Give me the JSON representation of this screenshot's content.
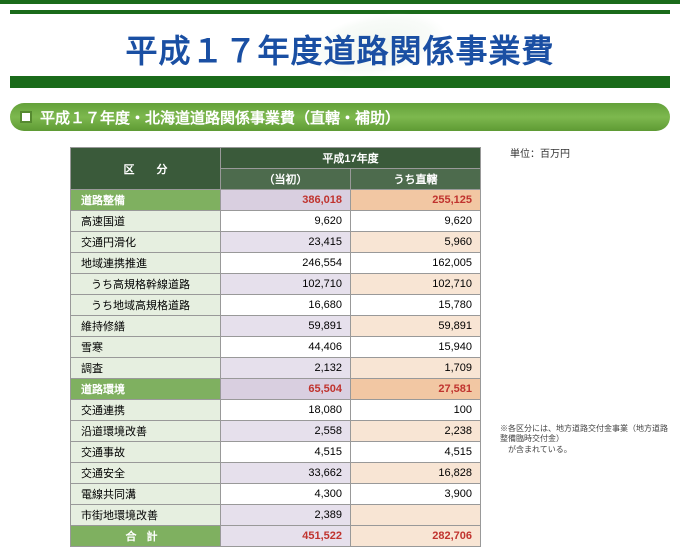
{
  "banner_title": "平成１７年度道路関係事業費",
  "subhead": "平成１７年度・北海道道路関係事業費（直轄・補助）",
  "unit_label": "単位：百万円",
  "table": {
    "header1": "区　　分",
    "header2": "平成17年度",
    "subhdr1": "（当初）",
    "subhdr2": "うち直轄",
    "rows": [
      {
        "label": "道路整備",
        "c1": "386,018",
        "c2": "255,125",
        "cls": "subtotal"
      },
      {
        "label": "高速国道",
        "c1": "9,620",
        "c2": "9,620",
        "cls": ""
      },
      {
        "label": "交通円滑化",
        "c1": "23,415",
        "c2": "5,960",
        "cls": "alt"
      },
      {
        "label": "地域連携推進",
        "c1": "246,554",
        "c2": "162,005",
        "cls": ""
      },
      {
        "label": "うち高規格幹線道路",
        "c1": "102,710",
        "c2": "102,710",
        "cls": "alt indent"
      },
      {
        "label": "うち地域高規格道路",
        "c1": "16,680",
        "c2": "15,780",
        "cls": "indent"
      },
      {
        "label": "維持修繕",
        "c1": "59,891",
        "c2": "59,891",
        "cls": "alt"
      },
      {
        "label": "雪寒",
        "c1": "44,406",
        "c2": "15,940",
        "cls": ""
      },
      {
        "label": "調査",
        "c1": "2,132",
        "c2": "1,709",
        "cls": "alt"
      },
      {
        "label": "道路環境",
        "c1": "65,504",
        "c2": "27,581",
        "cls": "subtotal"
      },
      {
        "label": "交通連携",
        "c1": "18,080",
        "c2": "100",
        "cls": ""
      },
      {
        "label": "沿道環境改善",
        "c1": "2,558",
        "c2": "2,238",
        "cls": "alt"
      },
      {
        "label": "交通事故",
        "c1": "4,515",
        "c2": "4,515",
        "cls": ""
      },
      {
        "label": "交通安全",
        "c1": "33,662",
        "c2": "16,828",
        "cls": "alt"
      },
      {
        "label": "電線共同溝",
        "c1": "4,300",
        "c2": "3,900",
        "cls": ""
      },
      {
        "label": "市街地環境改善",
        "c1": "2,389",
        "c2": "",
        "cls": "alt"
      },
      {
        "label": "合計",
        "c1": "451,522",
        "c2": "282,706",
        "cls": "total"
      }
    ]
  },
  "footnote_l1": "※各区分には、地方道路交付金事業（地方道路整備臨時交付金）",
  "footnote_l2": "　が含まれている。",
  "colors": {
    "green_dark": "#1a6b1a",
    "green_head": "#3a5a3a",
    "green_cell": "#e6efe0",
    "green_strong": "#7fb060",
    "purple_lt": "#e6e0ec",
    "orange_lt": "#f8e5d4",
    "red_text": "#c0332e",
    "blue_title": "#1a4fa3"
  }
}
